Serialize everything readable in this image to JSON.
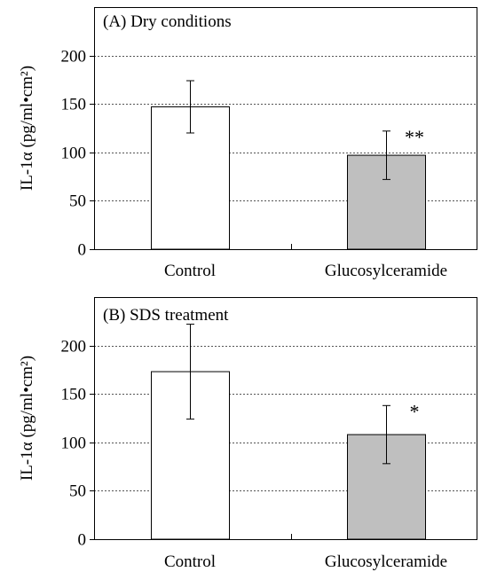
{
  "chart_data": [
    {
      "type": "bar",
      "title": "(A) Dry conditions",
      "ylabel": "IL-1α (pg/ml•cm²)",
      "xlabel": "",
      "categories": [
        "Control",
        "Glucosylceramide"
      ],
      "values": [
        147,
        97
      ],
      "errors": [
        27,
        25
      ],
      "annotations": [
        "",
        "**"
      ],
      "bar_colors": [
        "#ffffff",
        "#bfbfbf"
      ],
      "yticks": [
        0,
        50,
        100,
        150,
        200
      ],
      "ylim": [
        0,
        250
      ],
      "grid": true
    },
    {
      "type": "bar",
      "title": "(B) SDS treatment",
      "ylabel": "IL-1α (pg/ml•cm²)",
      "xlabel": "",
      "categories": [
        "Control",
        "Glucosylceramide"
      ],
      "values": [
        173,
        108
      ],
      "errors": [
        49,
        30
      ],
      "annotations": [
        "",
        "*"
      ],
      "bar_colors": [
        "#ffffff",
        "#bfbfbf"
      ],
      "yticks": [
        0,
        50,
        100,
        150,
        200
      ],
      "ylim": [
        0,
        250
      ],
      "grid": true
    }
  ]
}
